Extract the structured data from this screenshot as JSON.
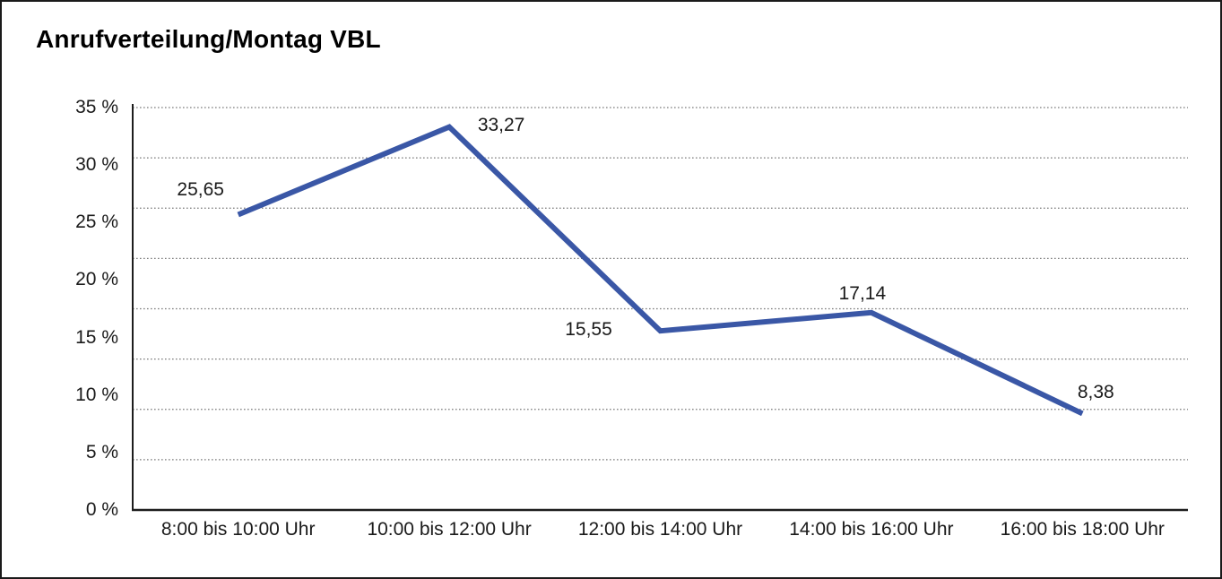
{
  "window": {
    "background_color": "#ffffff",
    "border_color": "#1a1a1a"
  },
  "chart_data": {
    "type": "line",
    "title": "Anrufverteilung/Montag VBL",
    "categories": [
      "8:00 bis 10:00 Uhr",
      "10:00 bis 12:00 Uhr",
      "12:00 bis 14:00 Uhr",
      "14:00 bis 16:00 Uhr",
      "16:00 bis 18:00 Uhr"
    ],
    "values": [
      25.65,
      33.27,
      15.55,
      17.14,
      8.38
    ],
    "value_labels": [
      "25,65",
      "33,27",
      "15,55",
      "17,14",
      "8,38"
    ],
    "xlabel": "",
    "ylabel": "",
    "ylim": [
      0,
      35
    ],
    "y_tick_labels": [
      "35 %",
      "30 %",
      "25 %",
      "20 %",
      "15 %",
      "10 %",
      "5 %",
      "0 %"
    ],
    "y_tick_values": [
      35,
      30,
      25,
      20,
      15,
      10,
      5,
      0
    ],
    "grid": "horizontal dotted, 8 equal divisions",
    "legend": "none",
    "line_color": "#3A57A6",
    "axis_color": "#1d1d1d",
    "gridline_color": "#7a7a7a"
  }
}
